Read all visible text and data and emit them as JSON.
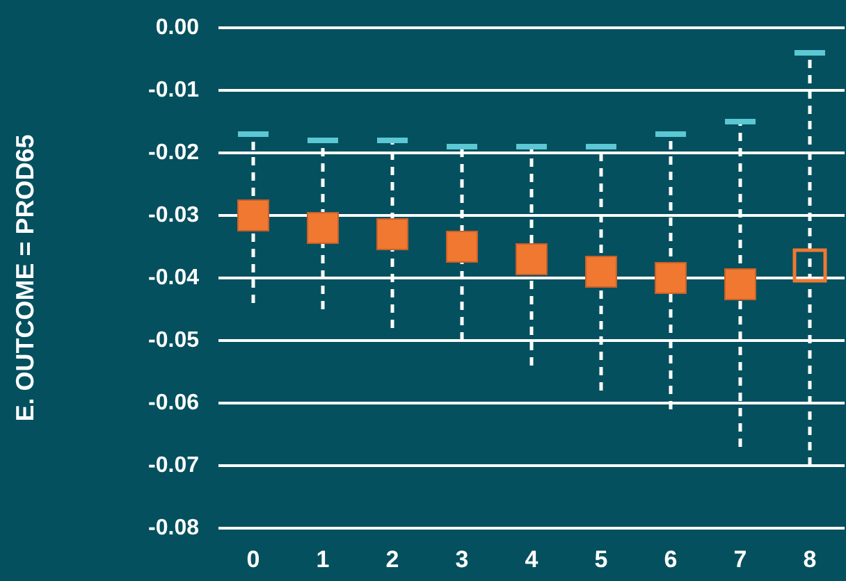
{
  "chart_data": {
    "type": "scatter",
    "ylabel": "E. OUTCOME = PROD65",
    "categories": [
      "0",
      "1",
      "2",
      "3",
      "4",
      "5",
      "6",
      "7",
      "8"
    ],
    "series": [
      {
        "color": "#f07830",
        "values": [
          -0.03,
          -0.032,
          -0.033,
          -0.035,
          -0.037,
          -0.039,
          -0.04,
          -0.041,
          null
        ],
        "errors": [
          [
            -0.044,
            -0.017
          ],
          [
            -0.045,
            -0.018
          ],
          [
            -0.048,
            -0.018
          ],
          [
            -0.05,
            -0.019
          ],
          [
            -0.054,
            -0.019
          ],
          [
            -0.058,
            -0.019
          ],
          [
            -0.061,
            -0.017
          ],
          [
            -0.067,
            -0.015
          ],
          null
        ]
      },
      {
        "color": "#f07830",
        "values": [
          null,
          null,
          null,
          null,
          null,
          null,
          null,
          null,
          -0.038
        ],
        "errors": [
          null,
          null,
          null,
          null,
          null,
          null,
          null,
          null,
          [
            -0.07,
            -0.004
          ]
        ]
      }
    ],
    "ylim": [
      -0.08,
      0
    ],
    "yticks": [
      {
        "value": -0.08,
        "label": "-0.08"
      },
      {
        "value": -0.07,
        "label": "-0.07"
      },
      {
        "value": -0.06,
        "label": "-0.06"
      },
      {
        "value": -0.05,
        "label": "-0.05"
      },
      {
        "value": -0.04,
        "label": "-0.04"
      },
      {
        "value": -0.03,
        "label": "-0.03"
      },
      {
        "value": -0.02,
        "label": "-0.02"
      },
      {
        "value": -0.01,
        "label": "-0.01"
      },
      {
        "value": 0,
        "label": "0.00"
      }
    ],
    "grid": "y",
    "marker": "square",
    "line_style": "dashed"
  }
}
